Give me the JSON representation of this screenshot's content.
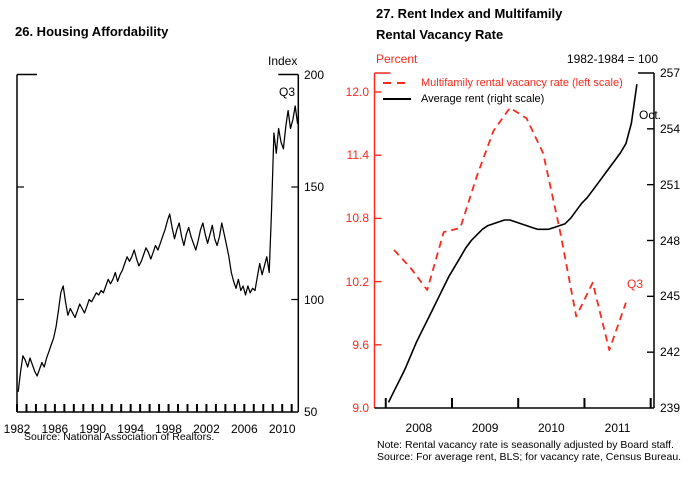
{
  "colors": {
    "black": "#000000",
    "red": "#fa2a1e",
    "background": "#ffffff"
  },
  "charts": [
    {
      "title": "26. Housing Affordability",
      "unit_label": "Index",
      "latest_label": "Q3",
      "source": "Source:  National Association of Realtors."
    },
    {
      "title_line1": "27. Rent Index and Multifamily",
      "title_line2": "Rental Vacancy Rate",
      "left_unit_label": "Percent",
      "right_unit_label": "1982-1984 = 100",
      "latest_label_left": "Q3",
      "latest_label_right": "Oct.",
      "legend": [
        {
          "label": "Multifamily rental vacancy rate (left scale)",
          "color": "#fa2a1e",
          "dash": true
        },
        {
          "label": "Average rent (right scale)",
          "color": "#000000",
          "dash": false
        }
      ],
      "note": "Note:  Rental vacancy rate is seasonally adjusted by Board staff.",
      "source": "Source:  For average rent, BLS; for vacancy rate, Census Bureau."
    }
  ],
  "chart_data": [
    {
      "type": "line",
      "title": "26. Housing Affordability",
      "ylabel": "Index",
      "xlim": [
        1982,
        2011.7
      ],
      "ylim": [
        50,
        200
      ],
      "y_ticks": [
        50,
        100,
        150,
        200
      ],
      "inner_y_ticks": [
        100,
        150
      ],
      "y_tick_decimals": 0,
      "x_year_tick_start": 1982,
      "x_year_tick_end": 2011,
      "x_tick_label_years": [
        1982,
        1986,
        1990,
        1994,
        1998,
        2002,
        2006,
        2010
      ],
      "x_label_align": "tick",
      "grid": false,
      "series": [
        {
          "name": "Housing Affordability Index (quarterly, 1982Q1-2011Q3)",
          "color": "#000000",
          "dash": false,
          "width": 1.25,
          "x_start": 1982.125,
          "x_step": 0.25,
          "values": [
            59,
            68,
            75,
            73,
            70,
            74,
            71,
            68,
            66,
            69,
            72,
            70,
            74,
            77,
            80,
            83,
            88,
            95,
            103,
            106,
            99,
            93,
            96,
            94,
            92,
            95,
            98,
            96,
            94,
            97,
            100,
            99,
            101,
            103,
            102,
            104,
            103,
            106,
            109,
            107,
            109,
            112,
            108,
            111,
            113,
            116,
            119,
            117,
            119,
            122,
            118,
            115,
            117,
            120,
            123,
            121,
            118,
            121,
            124,
            122,
            125,
            128,
            131,
            135,
            138,
            132,
            127,
            131,
            134,
            128,
            124,
            129,
            132,
            128,
            125,
            122,
            126,
            131,
            134,
            129,
            125,
            129,
            133,
            127,
            124,
            128,
            134,
            129,
            124,
            119,
            112,
            108,
            105,
            109,
            104,
            106,
            102,
            106,
            103,
            105,
            104,
            110,
            116,
            111,
            115,
            119,
            112,
            139,
            174,
            165,
            176,
            170,
            167,
            177,
            184,
            176,
            180,
            186,
            178
          ]
        }
      ]
    },
    {
      "type": "line",
      "title": "27. Rent Index and Multifamily Rental Vacancy Rate",
      "xlim": [
        2007.83,
        2012.05
      ],
      "left_axis": {
        "label": "Percent",
        "ylim": [
          9.0,
          12.0
        ],
        "ticks": [
          9.0,
          9.6,
          10.2,
          10.8,
          11.4,
          12.0
        ],
        "inner_ticks": [
          9.6,
          10.2,
          10.8,
          11.4,
          12.0
        ],
        "decimals": 1,
        "color": "#fa2a1e"
      },
      "right_axis": {
        "label": "1982-1984 = 100",
        "ylim": [
          239,
          257
        ],
        "ticks": [
          239,
          242,
          245,
          248,
          251,
          254,
          257
        ],
        "inner_ticks": [
          242,
          245,
          248,
          251,
          254
        ],
        "decimals": 0,
        "color": "#000000"
      },
      "x_year_tick_start": 2008,
      "x_year_tick_end": 2012,
      "x_tick_label_years": [
        2008,
        2009,
        2010,
        2011
      ],
      "x_label_align": "mid",
      "grid": false,
      "series": [
        {
          "name": "Multifamily rental vacancy rate (left scale)",
          "axis": "left",
          "color": "#fa2a1e",
          "dash": true,
          "width": 1.8,
          "x_start": 2008.125,
          "x_step": 0.25,
          "values": [
            10.5,
            10.33,
            10.12,
            10.67,
            10.71,
            11.2,
            11.63,
            11.85,
            11.75,
            11.42,
            10.7,
            9.87,
            10.19,
            9.55,
            10.0
          ]
        },
        {
          "name": "Average rent (right scale)",
          "axis": "right",
          "color": "#000000",
          "dash": false,
          "width": 1.6,
          "x_start": 2008.0417,
          "x_step": 0.0833333,
          "values": [
            239.3,
            239.9,
            240.5,
            241.1,
            241.8,
            242.5,
            243.1,
            243.7,
            244.3,
            244.9,
            245.5,
            246.1,
            246.6,
            247.1,
            247.6,
            248.0,
            248.3,
            248.6,
            248.8,
            248.9,
            249.0,
            249.1,
            249.1,
            249.0,
            248.9,
            248.8,
            248.7,
            248.6,
            248.6,
            248.6,
            248.7,
            248.8,
            248.9,
            249.2,
            249.6,
            250.0,
            250.3,
            250.7,
            251.1,
            251.5,
            251.9,
            252.3,
            252.7,
            253.2,
            254.3,
            256.4
          ]
        }
      ]
    }
  ]
}
